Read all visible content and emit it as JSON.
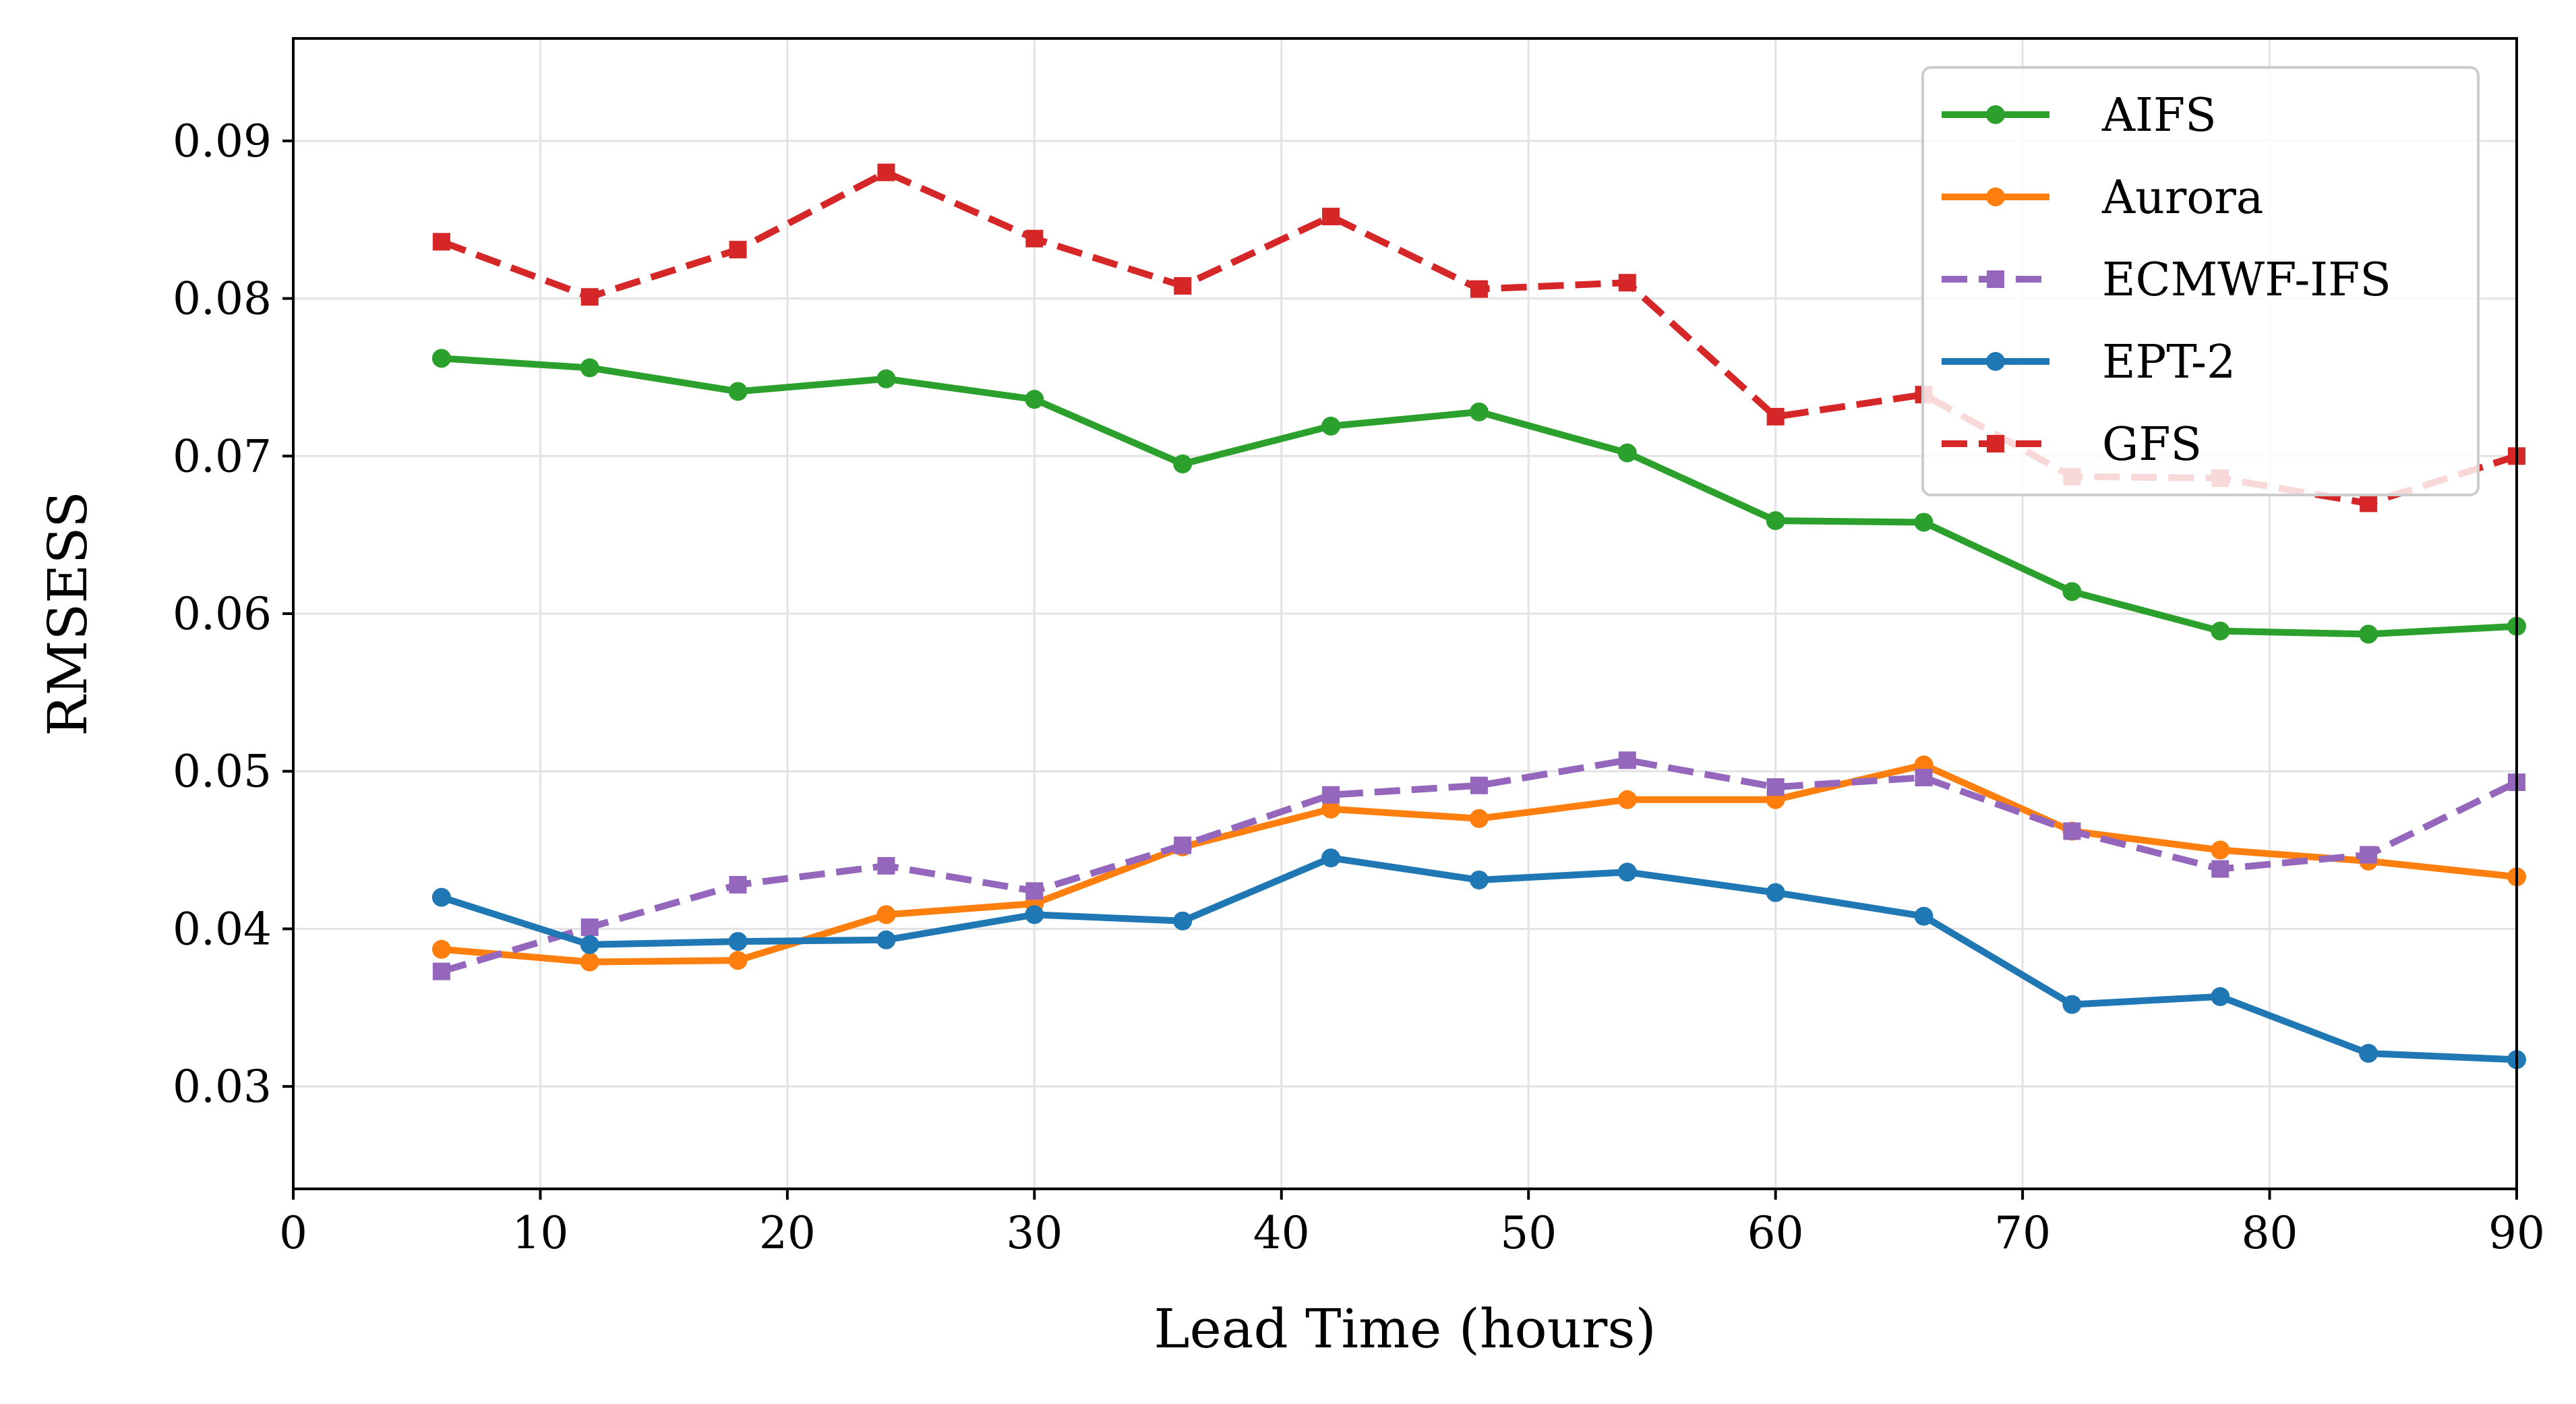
{
  "chart_data": {
    "type": "line",
    "title": "",
    "xlabel": "Lead Time (hours)",
    "ylabel": "RMSESS",
    "xlim": [
      0,
      90
    ],
    "ylim": [
      0.0235,
      0.0965
    ],
    "xticks": [
      0,
      10,
      20,
      30,
      40,
      50,
      60,
      70,
      80,
      90
    ],
    "xtick_labels": [
      "0",
      "10",
      "20",
      "30",
      "40",
      "50",
      "60",
      "70",
      "80",
      "90"
    ],
    "yticks": [
      0.03,
      0.04,
      0.05,
      0.06,
      0.07,
      0.08,
      0.09
    ],
    "ytick_labels": [
      "0.03",
      "0.04",
      "0.05",
      "0.06",
      "0.07",
      "0.08",
      "0.09"
    ],
    "grid": true,
    "legend_position": "top-right",
    "x": [
      6,
      12,
      18,
      24,
      30,
      36,
      42,
      48,
      54,
      60,
      66,
      72,
      78,
      84,
      90
    ],
    "series": [
      {
        "name": "AIFS",
        "color": "#2ca02c",
        "linestyle": "solid",
        "marker": "circle",
        "values": [
          0.0762,
          0.0756,
          0.0741,
          0.0749,
          0.0736,
          0.0695,
          0.0719,
          0.0728,
          0.0702,
          0.0659,
          0.0658,
          0.0614,
          0.0589,
          0.0587,
          0.0592
        ]
      },
      {
        "name": "Aurora",
        "color": "#ff7f0e",
        "linestyle": "solid",
        "marker": "circle",
        "values": [
          0.0387,
          0.0379,
          0.038,
          0.0409,
          0.0416,
          0.0452,
          0.0476,
          0.047,
          0.0482,
          0.0482,
          0.0504,
          0.0462,
          0.045,
          0.0443,
          0.0433
        ]
      },
      {
        "name": "ECMWF-IFS",
        "color": "#9467bd",
        "linestyle": "dashed",
        "marker": "square",
        "values": [
          0.0373,
          0.0401,
          0.0428,
          0.044,
          0.0424,
          0.0453,
          0.0485,
          0.0491,
          0.0507,
          0.049,
          0.0496,
          0.0462,
          0.0438,
          0.0447,
          0.0493
        ]
      },
      {
        "name": "EPT-2",
        "color": "#1f77b4",
        "linestyle": "solid",
        "marker": "circle",
        "values": [
          0.042,
          0.039,
          0.0392,
          0.0393,
          0.0409,
          0.0405,
          0.0445,
          0.0431,
          0.0436,
          0.0423,
          0.0408,
          0.0352,
          0.0357,
          0.0321,
          0.0317
        ]
      },
      {
        "name": "GFS",
        "color": "#d62728",
        "linestyle": "dashed",
        "marker": "square",
        "values": [
          0.0836,
          0.0801,
          0.0831,
          0.088,
          0.0838,
          0.0808,
          0.0852,
          0.0806,
          0.081,
          0.0725,
          0.0739,
          0.0687,
          0.0686,
          0.067,
          0.07
        ]
      }
    ]
  }
}
